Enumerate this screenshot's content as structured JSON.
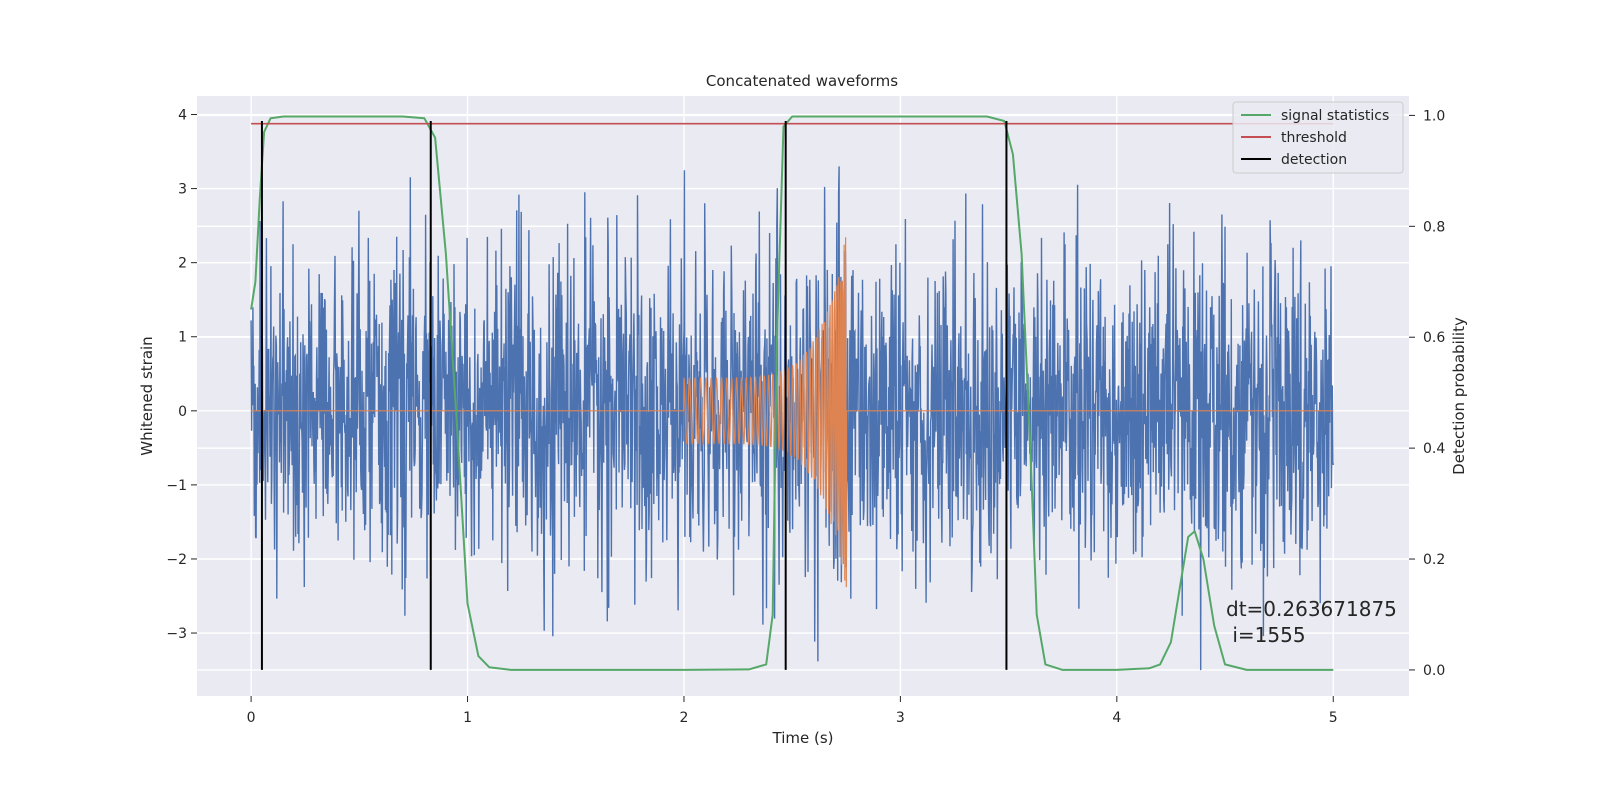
{
  "chart_data": {
    "type": "line",
    "title": "Concatenated waveforms",
    "xlabel": "Time (s)",
    "ylabel": "Whitened strain",
    "y2label": "Detection probability",
    "xlim": [
      -0.25,
      5.35
    ],
    "ylim": [
      -3.85,
      4.25
    ],
    "y2lim": [
      -0.047,
      1.035
    ],
    "x_ticks": [
      0,
      1,
      2,
      3,
      4,
      5
    ],
    "y_ticks": [
      -3,
      -2,
      -1,
      0,
      1,
      2,
      3,
      4
    ],
    "y2_ticks": [
      0.0,
      0.2,
      0.4,
      0.6,
      0.8,
      1.0
    ],
    "y2_tick_labels": [
      "0.0",
      "0.2",
      "0.4",
      "0.6",
      "0.8",
      "1.0"
    ],
    "grid": true,
    "legend_position": "top-right",
    "colors": {
      "background": "#eaeaf2",
      "grid": "#ffffff",
      "strain_noise": "#4c72b0",
      "injected_signal": "#dd8452",
      "signal_statistics": "#55a868",
      "threshold": "#c44e52",
      "detection": "#000000"
    },
    "series": [
      {
        "name": "signal statistics",
        "axis": "right",
        "x": [
          0.0,
          0.02,
          0.04,
          0.06,
          0.09,
          0.15,
          0.3,
          0.5,
          0.7,
          0.8,
          0.85,
          0.9,
          0.95,
          1.0,
          1.05,
          1.1,
          1.2,
          1.5,
          2.0,
          2.3,
          2.38,
          2.41,
          2.43,
          2.46,
          2.5,
          2.6,
          3.0,
          3.4,
          3.48,
          3.52,
          3.56,
          3.6,
          3.63,
          3.67,
          3.75,
          4.0,
          4.15,
          4.2,
          4.25,
          4.3,
          4.33,
          4.36,
          4.4,
          4.45,
          4.5,
          4.6,
          5.0
        ],
        "y": [
          0.65,
          0.7,
          0.85,
          0.97,
          0.995,
          0.998,
          0.998,
          0.998,
          0.998,
          0.995,
          0.96,
          0.75,
          0.45,
          0.12,
          0.025,
          0.005,
          0.0,
          0.0,
          0.0,
          0.001,
          0.01,
          0.1,
          0.6,
          0.98,
          0.998,
          0.998,
          0.998,
          0.998,
          0.99,
          0.93,
          0.75,
          0.4,
          0.1,
          0.01,
          0.0,
          0.0,
          0.003,
          0.01,
          0.05,
          0.17,
          0.24,
          0.25,
          0.2,
          0.08,
          0.01,
          0.0,
          0.0
        ]
      },
      {
        "name": "threshold",
        "axis": "right",
        "x": [
          0.0,
          5.0
        ],
        "y": [
          0.985,
          0.985
        ]
      },
      {
        "name": "detection",
        "axis": "right",
        "x_positions": [
          0.05,
          0.83,
          2.47,
          3.49
        ],
        "y_range": [
          0.0,
          0.99
        ]
      },
      {
        "axis": "left",
        "description_values": {
          "x_range": [
            0.0,
            5.0
          ],
          "typical_amplitude": 1.9,
          "extremes": [
            -3.5,
            3.9
          ]
        }
      },
      {
        "axis": "left",
        "x_start": 2.0,
        "x_merger": 2.75,
        "start_amplitude": 0.45,
        "peak_amplitude": 2.4,
        "min_at_merger": -2.0
      }
    ],
    "annotation_lines": [
      "dt=0.263671875",
      " i=1555"
    ]
  }
}
